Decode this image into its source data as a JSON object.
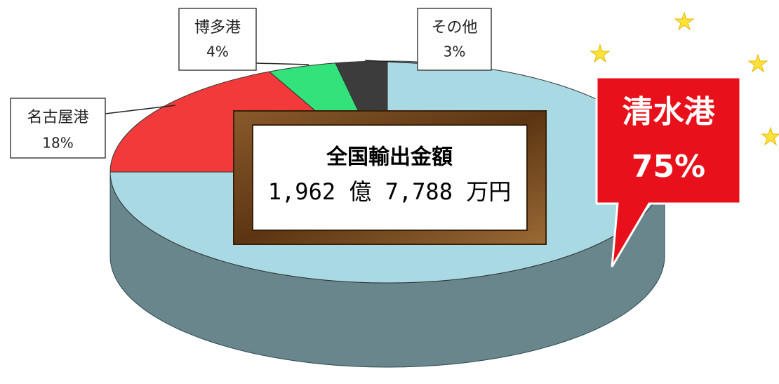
{
  "chart_data": {
    "type": "pie",
    "categories": [
      "清水港",
      "名古屋港",
      "博多港",
      "その他"
    ],
    "values": [
      75,
      18,
      4,
      3
    ],
    "value_labels": [
      "75%",
      "18%",
      "4%",
      "3%"
    ],
    "colors": [
      "#a9d9e3",
      "#f23a3a",
      "#33e27a",
      "#3c3c3c"
    ],
    "annotation": {
      "title": "全国輸出金額",
      "amount": "1,962 億 7,788 万円"
    }
  }
}
